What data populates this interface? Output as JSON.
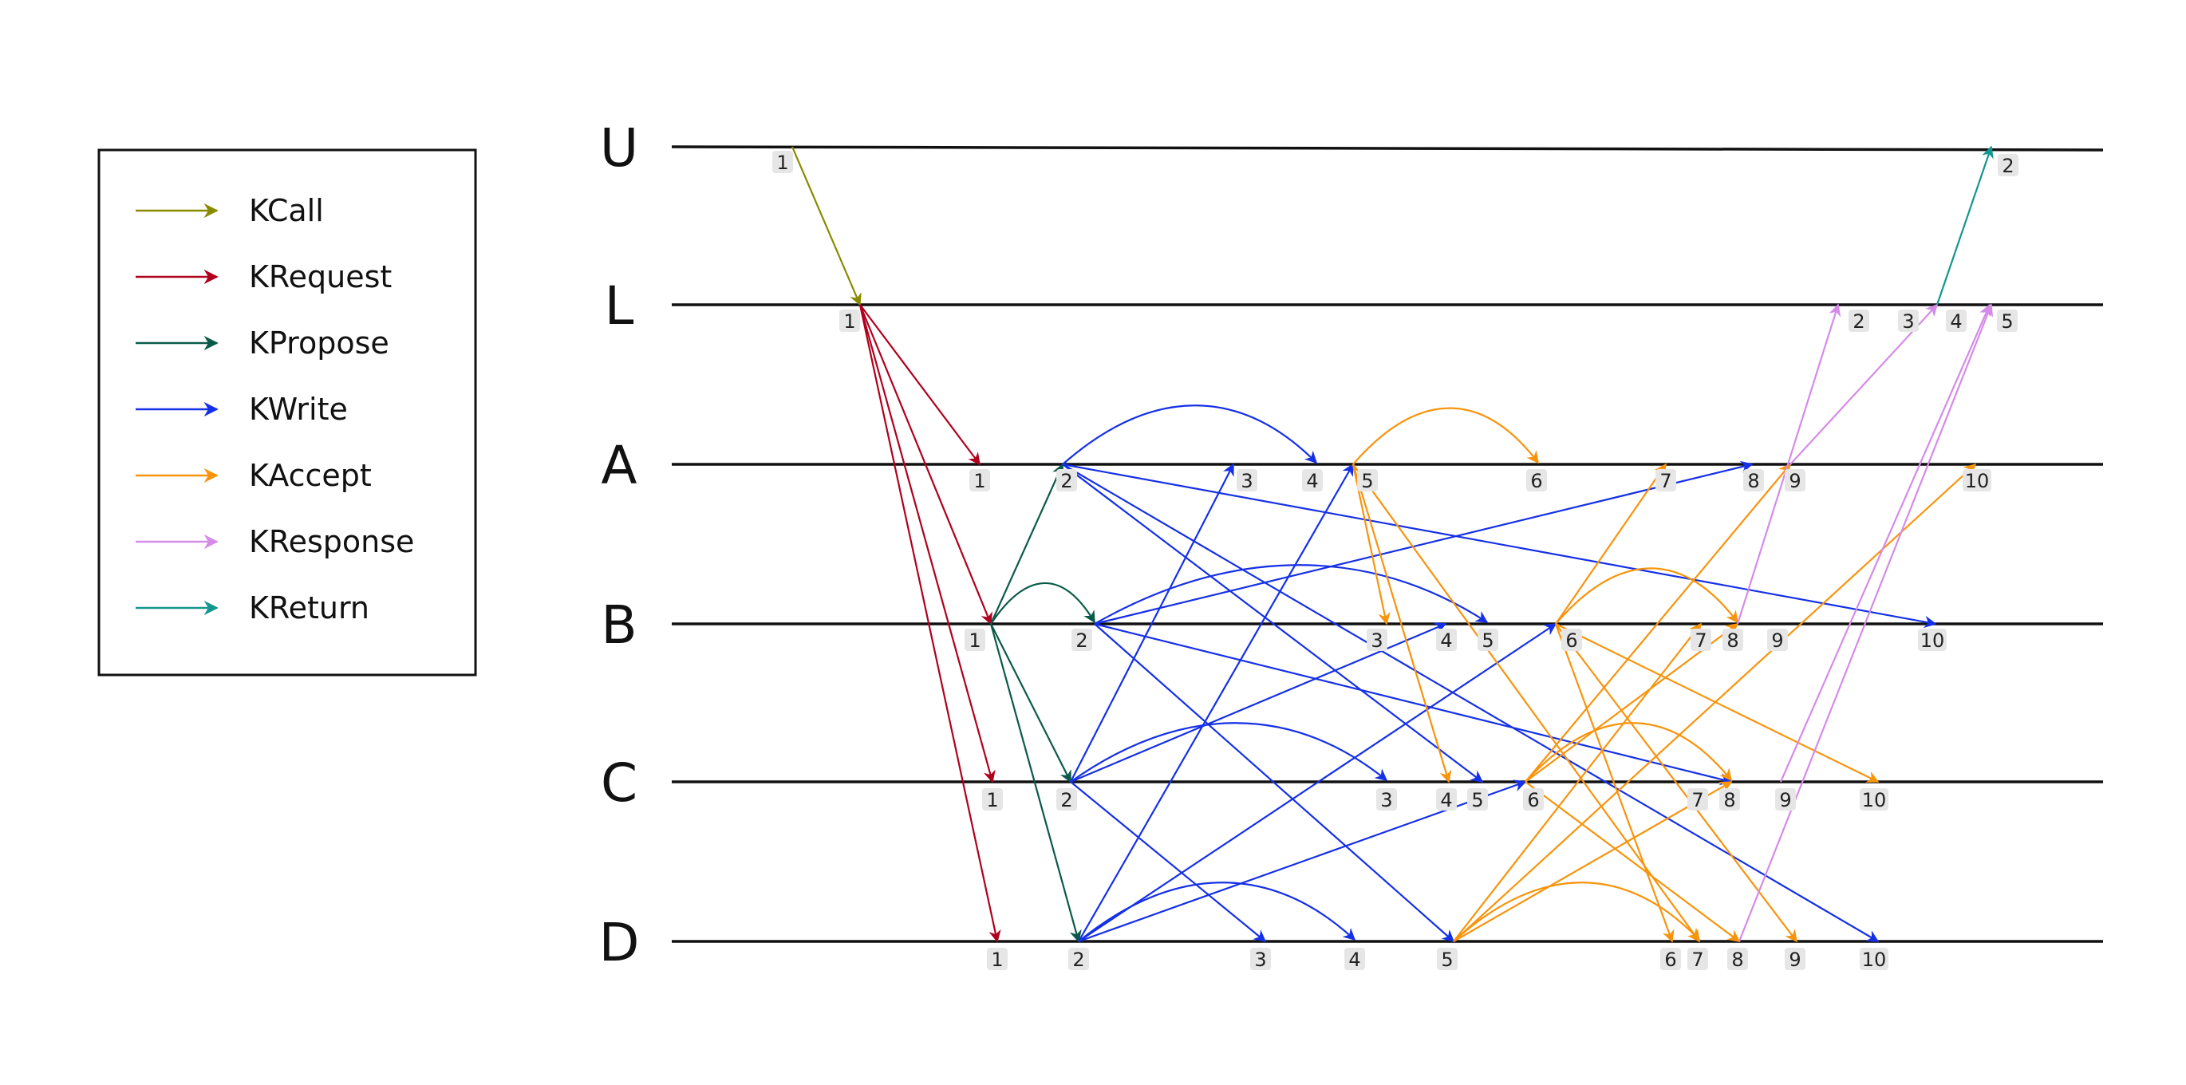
{
  "lanes": [
    "U",
    "L",
    "A",
    "B",
    "C",
    "D"
  ],
  "legend": [
    {
      "label": "KCall",
      "color": "#8a8a00"
    },
    {
      "label": "KRequest",
      "color": "#b0001e"
    },
    {
      "label": "KPropose",
      "color": "#0a5a48"
    },
    {
      "label": "KWrite",
      "color": "#1530e6"
    },
    {
      "label": "KAccept",
      "color": "#f7940c"
    },
    {
      "label": "KResponse",
      "color": "#d58be8"
    },
    {
      "label": "KReturn",
      "color": "#12968f"
    }
  ],
  "events": {
    "U": [
      "1",
      "2"
    ],
    "L": [
      "1",
      "2",
      "3",
      "4",
      "5"
    ],
    "A": [
      "1",
      "2",
      "3",
      "4",
      "5",
      "6",
      "7",
      "8",
      "9",
      "10"
    ],
    "B": [
      "1",
      "2",
      "3",
      "4",
      "5",
      "6",
      "7",
      "8",
      "9",
      "10"
    ],
    "C": [
      "1",
      "2",
      "3",
      "4",
      "5",
      "6",
      "7",
      "8",
      "9",
      "10"
    ],
    "D": [
      "1",
      "2",
      "3",
      "4",
      "5",
      "6",
      "7",
      "8",
      "9",
      "10"
    ]
  },
  "messages": [
    {
      "type": "KCall",
      "from": [
        "U",
        "1"
      ],
      "to": [
        "L",
        "1"
      ]
    },
    {
      "type": "KRequest",
      "from": [
        "L",
        "1"
      ],
      "to": [
        "A",
        "1"
      ]
    },
    {
      "type": "KRequest",
      "from": [
        "L",
        "1"
      ],
      "to": [
        "B",
        "1"
      ]
    },
    {
      "type": "KRequest",
      "from": [
        "L",
        "1"
      ],
      "to": [
        "C",
        "1"
      ]
    },
    {
      "type": "KRequest",
      "from": [
        "L",
        "1"
      ],
      "to": [
        "D",
        "1"
      ]
    },
    {
      "type": "KPropose",
      "from": [
        "B",
        "1"
      ],
      "to": [
        "A",
        "2"
      ]
    },
    {
      "type": "KPropose",
      "from": [
        "B",
        "1"
      ],
      "to": [
        "B",
        "2"
      ]
    },
    {
      "type": "KPropose",
      "from": [
        "B",
        "1"
      ],
      "to": [
        "C",
        "2"
      ]
    },
    {
      "type": "KPropose",
      "from": [
        "B",
        "1"
      ],
      "to": [
        "D",
        "2"
      ]
    },
    {
      "type": "KWrite",
      "from": [
        "A",
        "2"
      ],
      "to": [
        "A",
        "4"
      ]
    },
    {
      "type": "KWrite",
      "from": [
        "A",
        "2"
      ],
      "to": [
        "B",
        "10"
      ]
    },
    {
      "type": "KWrite",
      "from": [
        "A",
        "2"
      ],
      "to": [
        "C",
        "5"
      ]
    },
    {
      "type": "KWrite",
      "from": [
        "A",
        "2"
      ],
      "to": [
        "D",
        "10"
      ]
    },
    {
      "type": "KWrite",
      "from": [
        "B",
        "2"
      ],
      "to": [
        "A",
        "8"
      ]
    },
    {
      "type": "KWrite",
      "from": [
        "B",
        "2"
      ],
      "to": [
        "B",
        "5"
      ]
    },
    {
      "type": "KWrite",
      "from": [
        "B",
        "2"
      ],
      "to": [
        "C",
        "8"
      ]
    },
    {
      "type": "KWrite",
      "from": [
        "B",
        "2"
      ],
      "to": [
        "D",
        "5"
      ]
    },
    {
      "type": "KWrite",
      "from": [
        "C",
        "2"
      ],
      "to": [
        "A",
        "3"
      ]
    },
    {
      "type": "KWrite",
      "from": [
        "C",
        "2"
      ],
      "to": [
        "B",
        "4"
      ]
    },
    {
      "type": "KWrite",
      "from": [
        "C",
        "2"
      ],
      "to": [
        "C",
        "3"
      ]
    },
    {
      "type": "KWrite",
      "from": [
        "C",
        "2"
      ],
      "to": [
        "D",
        "3"
      ]
    },
    {
      "type": "KWrite",
      "from": [
        "D",
        "2"
      ],
      "to": [
        "A",
        "5"
      ]
    },
    {
      "type": "KWrite",
      "from": [
        "D",
        "2"
      ],
      "to": [
        "B",
        "6"
      ]
    },
    {
      "type": "KWrite",
      "from": [
        "D",
        "2"
      ],
      "to": [
        "C",
        "6"
      ]
    },
    {
      "type": "KWrite",
      "from": [
        "D",
        "2"
      ],
      "to": [
        "D",
        "4"
      ]
    },
    {
      "type": "KAccept",
      "from": [
        "A",
        "5"
      ],
      "to": [
        "A",
        "6"
      ]
    },
    {
      "type": "KAccept",
      "from": [
        "A",
        "5"
      ],
      "to": [
        "B",
        "3"
      ]
    },
    {
      "type": "KAccept",
      "from": [
        "A",
        "5"
      ],
      "to": [
        "C",
        "4"
      ]
    },
    {
      "type": "KAccept",
      "from": [
        "A",
        "5"
      ],
      "to": [
        "D",
        "7"
      ]
    },
    {
      "type": "KAccept",
      "from": [
        "B",
        "6"
      ],
      "to": [
        "A",
        "7"
      ]
    },
    {
      "type": "KAccept",
      "from": [
        "B",
        "6"
      ],
      "to": [
        "B",
        "8"
      ]
    },
    {
      "type": "KAccept",
      "from": [
        "B",
        "6"
      ],
      "to": [
        "C",
        "10"
      ]
    },
    {
      "type": "KAccept",
      "from": [
        "B",
        "6"
      ],
      "to": [
        "D",
        "6"
      ]
    },
    {
      "type": "KAccept",
      "from": [
        "C",
        "6"
      ],
      "to": [
        "A",
        "9"
      ]
    },
    {
      "type": "KAccept",
      "from": [
        "C",
        "6"
      ],
      "to": [
        "B",
        "8"
      ]
    },
    {
      "type": "KAccept",
      "from": [
        "C",
        "6"
      ],
      "to": [
        "C",
        "8"
      ]
    },
    {
      "type": "KAccept",
      "from": [
        "C",
        "6"
      ],
      "to": [
        "D",
        "8"
      ]
    },
    {
      "type": "KAccept",
      "from": [
        "D",
        "5"
      ],
      "to": [
        "A",
        "10"
      ]
    },
    {
      "type": "KAccept",
      "from": [
        "D",
        "5"
      ],
      "to": [
        "B",
        "7"
      ]
    },
    {
      "type": "KAccept",
      "from": [
        "D",
        "5"
      ],
      "to": [
        "C",
        "8"
      ]
    },
    {
      "type": "KAccept",
      "from": [
        "D",
        "5"
      ],
      "to": [
        "D",
        "7"
      ]
    },
    {
      "type": "KAccept",
      "from": [
        "B",
        "6"
      ],
      "to": [
        "D",
        "9"
      ]
    },
    {
      "type": "KResponse",
      "from": [
        "B",
        "8"
      ],
      "to": [
        "L",
        "2"
      ]
    },
    {
      "type": "KResponse",
      "from": [
        "A",
        "9"
      ],
      "to": [
        "L",
        "3"
      ]
    },
    {
      "type": "KResponse",
      "from": [
        "C",
        "9"
      ],
      "to": [
        "L",
        "4"
      ]
    },
    {
      "type": "KResponse",
      "from": [
        "D",
        "8"
      ],
      "to": [
        "L",
        "5"
      ]
    },
    {
      "type": "KReturn",
      "from": [
        "L",
        "3"
      ],
      "to": [
        "U",
        "2"
      ]
    }
  ]
}
